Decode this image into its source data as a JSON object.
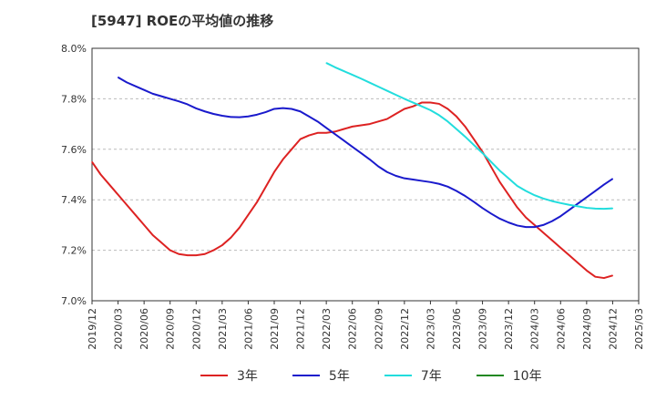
{
  "chart_data": {
    "type": "line",
    "title": "[5947]  ROEの平均値の推移",
    "xlabel": "",
    "ylabel": "",
    "x_ticks": [
      "2019/12",
      "2020/03",
      "2020/06",
      "2020/09",
      "2020/12",
      "2021/03",
      "2021/06",
      "2021/09",
      "2021/12",
      "2022/03",
      "2022/06",
      "2022/09",
      "2022/12",
      "2023/03",
      "2023/06",
      "2023/09",
      "2023/12",
      "2024/03",
      "2024/06",
      "2024/09",
      "2024/12",
      "2025/03"
    ],
    "y_ticks": [
      "7.0%",
      "7.2%",
      "7.4%",
      "7.6%",
      "7.8%",
      "8.0%"
    ],
    "ylim": [
      7.0,
      8.0
    ],
    "grid": "horizontal-dashed",
    "legend_position": "bottom",
    "series": [
      {
        "name": "3年",
        "color": "#dd2222",
        "points": [
          [
            "2019/12",
            7.55
          ],
          [
            "2020/01",
            7.5
          ],
          [
            "2020/02",
            7.46
          ],
          [
            "2020/03",
            7.42
          ],
          [
            "2020/04",
            7.38
          ],
          [
            "2020/05",
            7.34
          ],
          [
            "2020/06",
            7.3
          ],
          [
            "2020/07",
            7.26
          ],
          [
            "2020/08",
            7.23
          ],
          [
            "2020/09",
            7.2
          ],
          [
            "2020/10",
            7.185
          ],
          [
            "2020/11",
            7.18
          ],
          [
            "2020/12",
            7.18
          ],
          [
            "2021/01",
            7.185
          ],
          [
            "2021/02",
            7.2
          ],
          [
            "2021/03",
            7.22
          ],
          [
            "2021/04",
            7.25
          ],
          [
            "2021/05",
            7.29
          ],
          [
            "2021/06",
            7.34
          ],
          [
            "2021/07",
            7.39
          ],
          [
            "2021/08",
            7.45
          ],
          [
            "2021/09",
            7.51
          ],
          [
            "2021/10",
            7.56
          ],
          [
            "2021/11",
            7.6
          ],
          [
            "2021/12",
            7.64
          ],
          [
            "2022/01",
            7.655
          ],
          [
            "2022/02",
            7.665
          ],
          [
            "2022/03",
            7.665
          ],
          [
            "2022/04",
            7.67
          ],
          [
            "2022/05",
            7.68
          ],
          [
            "2022/06",
            7.69
          ],
          [
            "2022/07",
            7.695
          ],
          [
            "2022/08",
            7.7
          ],
          [
            "2022/09",
            7.71
          ],
          [
            "2022/10",
            7.72
          ],
          [
            "2022/11",
            7.74
          ],
          [
            "2022/12",
            7.76
          ],
          [
            "2023/01",
            7.77
          ],
          [
            "2023/02",
            7.785
          ],
          [
            "2023/03",
            7.785
          ],
          [
            "2023/04",
            7.78
          ],
          [
            "2023/05",
            7.76
          ],
          [
            "2023/06",
            7.73
          ],
          [
            "2023/07",
            7.69
          ],
          [
            "2023/08",
            7.64
          ],
          [
            "2023/09",
            7.59
          ],
          [
            "2023/10",
            7.53
          ],
          [
            "2023/11",
            7.47
          ],
          [
            "2023/12",
            7.42
          ],
          [
            "2024/01",
            7.37
          ],
          [
            "2024/02",
            7.33
          ],
          [
            "2024/03",
            7.3
          ],
          [
            "2024/04",
            7.27
          ],
          [
            "2024/05",
            7.24
          ],
          [
            "2024/06",
            7.21
          ],
          [
            "2024/07",
            7.18
          ],
          [
            "2024/08",
            7.15
          ],
          [
            "2024/09",
            7.12
          ],
          [
            "2024/10",
            7.095
          ],
          [
            "2024/11",
            7.09
          ],
          [
            "2024/12",
            7.1
          ]
        ]
      },
      {
        "name": "5年",
        "color": "#1a1acc",
        "points": [
          [
            "2020/03",
            7.885
          ],
          [
            "2020/04",
            7.865
          ],
          [
            "2020/05",
            7.85
          ],
          [
            "2020/06",
            7.835
          ],
          [
            "2020/07",
            7.82
          ],
          [
            "2020/08",
            7.81
          ],
          [
            "2020/09",
            7.8
          ],
          [
            "2020/10",
            7.79
          ],
          [
            "2020/11",
            7.778
          ],
          [
            "2020/12",
            7.762
          ],
          [
            "2021/01",
            7.75
          ],
          [
            "2021/02",
            7.74
          ],
          [
            "2021/03",
            7.733
          ],
          [
            "2021/04",
            7.728
          ],
          [
            "2021/05",
            7.727
          ],
          [
            "2021/06",
            7.73
          ],
          [
            "2021/07",
            7.737
          ],
          [
            "2021/08",
            7.747
          ],
          [
            "2021/09",
            7.76
          ],
          [
            "2021/10",
            7.763
          ],
          [
            "2021/11",
            7.76
          ],
          [
            "2021/12",
            7.75
          ],
          [
            "2022/01",
            7.73
          ],
          [
            "2022/02",
            7.71
          ],
          [
            "2022/03",
            7.685
          ],
          [
            "2022/04",
            7.66
          ],
          [
            "2022/05",
            7.635
          ],
          [
            "2022/06",
            7.61
          ],
          [
            "2022/07",
            7.585
          ],
          [
            "2022/08",
            7.56
          ],
          [
            "2022/09",
            7.532
          ],
          [
            "2022/10",
            7.51
          ],
          [
            "2022/11",
            7.495
          ],
          [
            "2022/12",
            7.485
          ],
          [
            "2023/01",
            7.48
          ],
          [
            "2023/02",
            7.475
          ],
          [
            "2023/03",
            7.47
          ],
          [
            "2023/04",
            7.463
          ],
          [
            "2023/05",
            7.452
          ],
          [
            "2023/06",
            7.435
          ],
          [
            "2023/07",
            7.415
          ],
          [
            "2023/08",
            7.392
          ],
          [
            "2023/09",
            7.367
          ],
          [
            "2023/10",
            7.345
          ],
          [
            "2023/11",
            7.325
          ],
          [
            "2023/12",
            7.31
          ],
          [
            "2024/01",
            7.298
          ],
          [
            "2024/02",
            7.292
          ],
          [
            "2024/03",
            7.292
          ],
          [
            "2024/04",
            7.3
          ],
          [
            "2024/05",
            7.315
          ],
          [
            "2024/06",
            7.335
          ],
          [
            "2024/07",
            7.36
          ],
          [
            "2024/08",
            7.385
          ],
          [
            "2024/09",
            7.41
          ],
          [
            "2024/10",
            7.435
          ],
          [
            "2024/11",
            7.46
          ],
          [
            "2024/12",
            7.483
          ]
        ]
      },
      {
        "name": "7年",
        "color": "#22dddd",
        "points": [
          [
            "2022/03",
            7.942
          ],
          [
            "2022/04",
            7.925
          ],
          [
            "2022/05",
            7.91
          ],
          [
            "2022/06",
            7.895
          ],
          [
            "2022/07",
            7.88
          ],
          [
            "2022/08",
            7.864
          ],
          [
            "2022/09",
            7.848
          ],
          [
            "2022/10",
            7.832
          ],
          [
            "2022/11",
            7.816
          ],
          [
            "2022/12",
            7.8
          ],
          [
            "2023/01",
            7.785
          ],
          [
            "2023/02",
            7.77
          ],
          [
            "2023/03",
            7.755
          ],
          [
            "2023/04",
            7.735
          ],
          [
            "2023/05",
            7.71
          ],
          [
            "2023/06",
            7.68
          ],
          [
            "2023/07",
            7.65
          ],
          [
            "2023/08",
            7.617
          ],
          [
            "2023/09",
            7.585
          ],
          [
            "2023/10",
            7.55
          ],
          [
            "2023/11",
            7.515
          ],
          [
            "2023/12",
            7.485
          ],
          [
            "2024/01",
            7.455
          ],
          [
            "2024/02",
            7.435
          ],
          [
            "2024/03",
            7.418
          ],
          [
            "2024/04",
            7.405
          ],
          [
            "2024/05",
            7.395
          ],
          [
            "2024/06",
            7.387
          ],
          [
            "2024/07",
            7.38
          ],
          [
            "2024/08",
            7.374
          ],
          [
            "2024/09",
            7.368
          ],
          [
            "2024/10",
            7.365
          ],
          [
            "2024/11",
            7.364
          ],
          [
            "2024/12",
            7.366
          ]
        ]
      },
      {
        "name": "10年",
        "color": "#228822",
        "points": []
      }
    ]
  }
}
